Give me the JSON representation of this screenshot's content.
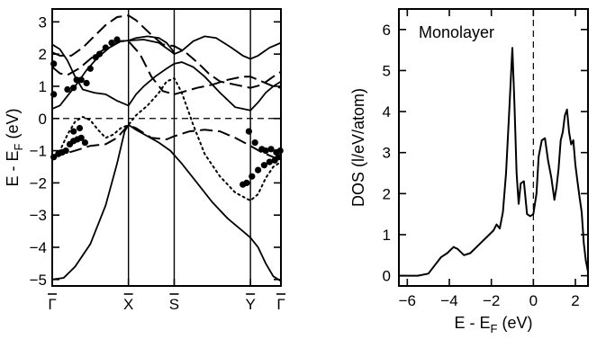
{
  "chart_data": [
    {
      "type": "line",
      "title": "",
      "xlabel": "",
      "ylabel": "E - E_F (eV)",
      "ylabel_parts": {
        "main": "E - E",
        "sub": "F",
        "unit": " (eV)"
      },
      "ylim": [
        -5.2,
        3.4
      ],
      "y_ticks": [
        -5,
        -4,
        -3,
        -2,
        -1,
        0,
        1,
        2,
        3
      ],
      "x_kpoints": [
        {
          "label": "Γ̄",
          "base": "Γ",
          "x": 0
        },
        {
          "label": "X̄",
          "base": "X",
          "x": 1
        },
        {
          "label": "S̄",
          "base": "S",
          "x": 1.6
        },
        {
          "label": "Ȳ",
          "base": "Y",
          "x": 2.6
        },
        {
          "label": "Γ̄",
          "base": "Γ",
          "x": 3.0
        }
      ],
      "xlim": [
        0,
        3.0
      ],
      "fermi_level": 0,
      "series": [
        {
          "style": "solid",
          "points": [
            [
              0,
              2.3
            ],
            [
              0.1,
              2.15
            ],
            [
              0.2,
              1.8
            ],
            [
              0.3,
              1.3
            ],
            [
              0.4,
              0.9
            ],
            [
              0.55,
              0.8
            ],
            [
              0.7,
              0.75
            ],
            [
              0.85,
              0.55
            ],
            [
              1.0,
              0.4
            ],
            [
              1.1,
              0.75
            ],
            [
              1.2,
              1.0
            ],
            [
              1.35,
              1.3
            ],
            [
              1.5,
              1.55
            ],
            [
              1.6,
              1.7
            ],
            [
              1.7,
              1.75
            ],
            [
              1.85,
              1.6
            ],
            [
              2.0,
              1.3
            ],
            [
              2.2,
              0.8
            ],
            [
              2.4,
              0.35
            ],
            [
              2.6,
              0.25
            ],
            [
              2.7,
              0.5
            ],
            [
              2.8,
              0.8
            ],
            [
              2.9,
              1.0
            ],
            [
              3.0,
              1.15
            ]
          ]
        },
        {
          "style": "solid",
          "points": [
            [
              0,
              0.3
            ],
            [
              0.1,
              0.4
            ],
            [
              0.2,
              0.7
            ],
            [
              0.3,
              1.0
            ],
            [
              0.45,
              1.5
            ],
            [
              0.6,
              1.9
            ],
            [
              0.75,
              2.2
            ],
            [
              0.9,
              2.4
            ],
            [
              1.0,
              2.42
            ],
            [
              1.2,
              2.45
            ],
            [
              1.4,
              2.35
            ],
            [
              1.55,
              2.1
            ],
            [
              1.6,
              2.0
            ],
            [
              1.7,
              2.1
            ],
            [
              1.85,
              2.4
            ],
            [
              2.0,
              2.55
            ],
            [
              2.15,
              2.5
            ],
            [
              2.35,
              2.2
            ],
            [
              2.5,
              1.95
            ],
            [
              2.6,
              1.85
            ],
            [
              2.7,
              1.95
            ],
            [
              2.85,
              2.2
            ],
            [
              3.0,
              2.35
            ]
          ]
        },
        {
          "style": "solid",
          "points": [
            [
              1.0,
              2.42
            ],
            [
              1.1,
              2.5
            ],
            [
              1.25,
              2.55
            ],
            [
              1.4,
              2.5
            ],
            [
              1.5,
              2.35
            ],
            [
              1.6,
              2.05
            ]
          ]
        },
        {
          "style": "solid",
          "points": [
            [
              0,
              -5.0
            ],
            [
              0.15,
              -4.95
            ],
            [
              0.3,
              -4.6
            ],
            [
              0.5,
              -3.9
            ],
            [
              0.7,
              -2.7
            ],
            [
              0.85,
              -1.4
            ],
            [
              0.95,
              -0.4
            ],
            [
              1.0,
              -0.2
            ],
            [
              1.1,
              -0.35
            ],
            [
              1.25,
              -0.55
            ],
            [
              1.4,
              -0.75
            ],
            [
              1.55,
              -1.0
            ],
            [
              1.7,
              -1.4
            ],
            [
              1.9,
              -2.0
            ],
            [
              2.1,
              -2.6
            ],
            [
              2.3,
              -3.1
            ],
            [
              2.5,
              -3.5
            ],
            [
              2.6,
              -3.7
            ],
            [
              2.7,
              -4.0
            ],
            [
              2.8,
              -4.5
            ],
            [
              2.9,
              -4.9
            ],
            [
              3.0,
              -5.05
            ]
          ]
        },
        {
          "style": "dashed",
          "points": [
            [
              0,
              2.05
            ],
            [
              0.1,
              1.95
            ],
            [
              0.25,
              1.95
            ],
            [
              0.4,
              2.2
            ],
            [
              0.55,
              2.55
            ],
            [
              0.7,
              2.9
            ],
            [
              0.85,
              3.15
            ],
            [
              1.0,
              3.2
            ],
            [
              1.1,
              3.05
            ],
            [
              1.3,
              2.6
            ],
            [
              1.45,
              2.3
            ],
            [
              1.6,
              2.25
            ],
            [
              1.75,
              2.05
            ],
            [
              1.9,
              1.75
            ],
            [
              2.05,
              1.4
            ],
            [
              2.2,
              1.15
            ],
            [
              2.4,
              1.05
            ],
            [
              2.6,
              0.95
            ],
            [
              2.75,
              1.05
            ],
            [
              2.9,
              1.3
            ],
            [
              3.0,
              1.45
            ]
          ]
        },
        {
          "style": "dashed",
          "points": [
            [
              0,
              1.6
            ],
            [
              0.1,
              1.4
            ],
            [
              0.2,
              1.35
            ],
            [
              0.35,
              1.55
            ],
            [
              0.55,
              1.95
            ],
            [
              0.75,
              2.25
            ],
            [
              0.9,
              2.4
            ],
            [
              1.0,
              2.4
            ],
            [
              1.15,
              2.0
            ],
            [
              1.3,
              1.3
            ],
            [
              1.45,
              0.85
            ],
            [
              1.6,
              0.75
            ],
            [
              1.75,
              0.85
            ],
            [
              1.9,
              0.95
            ],
            [
              2.1,
              1.05
            ],
            [
              2.3,
              1.2
            ],
            [
              2.5,
              1.3
            ],
            [
              2.6,
              1.3
            ],
            [
              2.75,
              1.15
            ],
            [
              2.9,
              1.0
            ],
            [
              3.0,
              0.95
            ]
          ]
        },
        {
          "style": "dashed",
          "points": [
            [
              0,
              -1.2
            ],
            [
              0.15,
              -1.1
            ],
            [
              0.3,
              -1.0
            ],
            [
              0.5,
              -0.85
            ],
            [
              0.7,
              -0.8
            ],
            [
              0.85,
              -0.6
            ],
            [
              1.0,
              -0.2
            ],
            [
              1.1,
              -0.3
            ],
            [
              1.3,
              -0.6
            ],
            [
              1.5,
              -0.65
            ],
            [
              1.6,
              -0.55
            ],
            [
              1.8,
              -0.4
            ],
            [
              2.0,
              -0.35
            ],
            [
              2.2,
              -0.4
            ],
            [
              2.4,
              -0.6
            ],
            [
              2.6,
              -0.85
            ],
            [
              2.75,
              -1.05
            ],
            [
              2.9,
              -1.2
            ],
            [
              3.0,
              -1.25
            ]
          ]
        },
        {
          "style": "dotted",
          "points": [
            [
              0,
              -1.3
            ],
            [
              0.1,
              -1.0
            ],
            [
              0.2,
              -0.5
            ],
            [
              0.3,
              -0.1
            ],
            [
              0.4,
              0.05
            ],
            [
              0.5,
              -0.05
            ],
            [
              0.6,
              -0.35
            ],
            [
              0.7,
              -0.6
            ],
            [
              0.8,
              -0.5
            ],
            [
              0.9,
              -0.3
            ],
            [
              1.0,
              -0.2
            ],
            [
              1.1,
              0.1
            ],
            [
              1.25,
              0.4
            ],
            [
              1.4,
              0.8
            ],
            [
              1.5,
              1.15
            ],
            [
              1.6,
              1.25
            ],
            [
              1.7,
              0.8
            ],
            [
              1.85,
              -0.2
            ],
            [
              2.0,
              -1.1
            ],
            [
              2.2,
              -1.8
            ],
            [
              2.4,
              -2.3
            ],
            [
              2.6,
              -2.55
            ],
            [
              2.7,
              -2.35
            ],
            [
              2.8,
              -1.85
            ],
            [
              2.9,
              -1.5
            ],
            [
              3.0,
              -1.35
            ]
          ]
        },
        {
          "style": "markers",
          "points": [
            [
              0.02,
              1.7
            ],
            [
              0.02,
              0.75
            ],
            [
              0.2,
              0.9
            ],
            [
              0.28,
              0.95
            ],
            [
              0.32,
              1.2
            ],
            [
              0.38,
              1.2
            ],
            [
              0.45,
              1.1
            ],
            [
              0.5,
              1.55
            ],
            [
              0.57,
              1.9
            ],
            [
              0.62,
              2.0
            ],
            [
              0.7,
              2.2
            ],
            [
              0.78,
              2.35
            ],
            [
              0.85,
              2.45
            ],
            [
              0.02,
              -1.2
            ],
            [
              0.08,
              -1.1
            ],
            [
              0.13,
              -1.05
            ],
            [
              0.18,
              -1.0
            ],
            [
              0.23,
              -0.8
            ],
            [
              0.28,
              -0.7
            ],
            [
              0.33,
              -0.65
            ],
            [
              0.38,
              -0.6
            ],
            [
              0.43,
              -0.75
            ],
            [
              0.28,
              -0.4
            ],
            [
              0.36,
              -0.3
            ],
            [
              2.5,
              -2.05
            ],
            [
              2.55,
              -2.0
            ],
            [
              2.62,
              -1.8
            ],
            [
              2.7,
              -1.6
            ],
            [
              2.78,
              -1.45
            ],
            [
              2.85,
              -1.35
            ],
            [
              2.92,
              -1.3
            ],
            [
              2.97,
              -1.2
            ],
            [
              2.58,
              -0.4
            ],
            [
              2.66,
              -0.75
            ],
            [
              2.75,
              -0.95
            ],
            [
              2.8,
              -1.0
            ],
            [
              2.87,
              -0.95
            ],
            [
              2.94,
              -1.05
            ],
            [
              2.99,
              -1.0
            ]
          ]
        }
      ]
    },
    {
      "type": "line",
      "title": "",
      "annotation": "Monolayer",
      "xlabel": "E - E_F (eV)",
      "xlabel_parts": {
        "main": "E - E",
        "sub": "F",
        "unit": " (eV)"
      },
      "ylabel": "DOS (l/eV/atom)",
      "xlim": [
        -6.4,
        2.6
      ],
      "ylim": [
        -0.25,
        6.5
      ],
      "x_ticks": [
        -6,
        -4,
        -2,
        0,
        2
      ],
      "y_ticks": [
        0,
        1,
        2,
        3,
        4,
        5,
        6
      ],
      "fermi_level": 0,
      "series": [
        {
          "style": "solid",
          "x": [
            -6.4,
            -5.5,
            -5.0,
            -4.7,
            -4.4,
            -4.1,
            -3.8,
            -3.6,
            -3.3,
            -3.0,
            -2.7,
            -2.4,
            -2.1,
            -1.9,
            -1.75,
            -1.6,
            -1.45,
            -1.3,
            -1.15,
            -1.0,
            -0.9,
            -0.8,
            -0.7,
            -0.6,
            -0.45,
            -0.3,
            -0.15,
            0.0,
            0.15,
            0.25,
            0.4,
            0.55,
            0.7,
            0.85,
            1.0,
            1.1,
            1.2,
            1.3,
            1.4,
            1.5,
            1.6,
            1.7,
            1.8,
            1.9,
            2.0,
            2.1,
            2.2,
            2.3,
            2.4,
            2.5,
            2.6
          ],
          "y": [
            0.0,
            0.0,
            0.05,
            0.25,
            0.45,
            0.55,
            0.7,
            0.65,
            0.5,
            0.55,
            0.7,
            0.85,
            1.0,
            1.1,
            1.25,
            1.15,
            1.55,
            2.5,
            4.0,
            5.55,
            4.2,
            2.5,
            1.75,
            2.25,
            2.3,
            1.5,
            1.45,
            1.5,
            2.0,
            2.9,
            3.3,
            3.35,
            2.8,
            2.4,
            1.85,
            2.15,
            2.6,
            3.3,
            3.5,
            3.9,
            4.05,
            3.5,
            3.2,
            3.3,
            2.7,
            2.3,
            1.9,
            1.55,
            0.8,
            0.35,
            0.1
          ]
        }
      ]
    }
  ]
}
